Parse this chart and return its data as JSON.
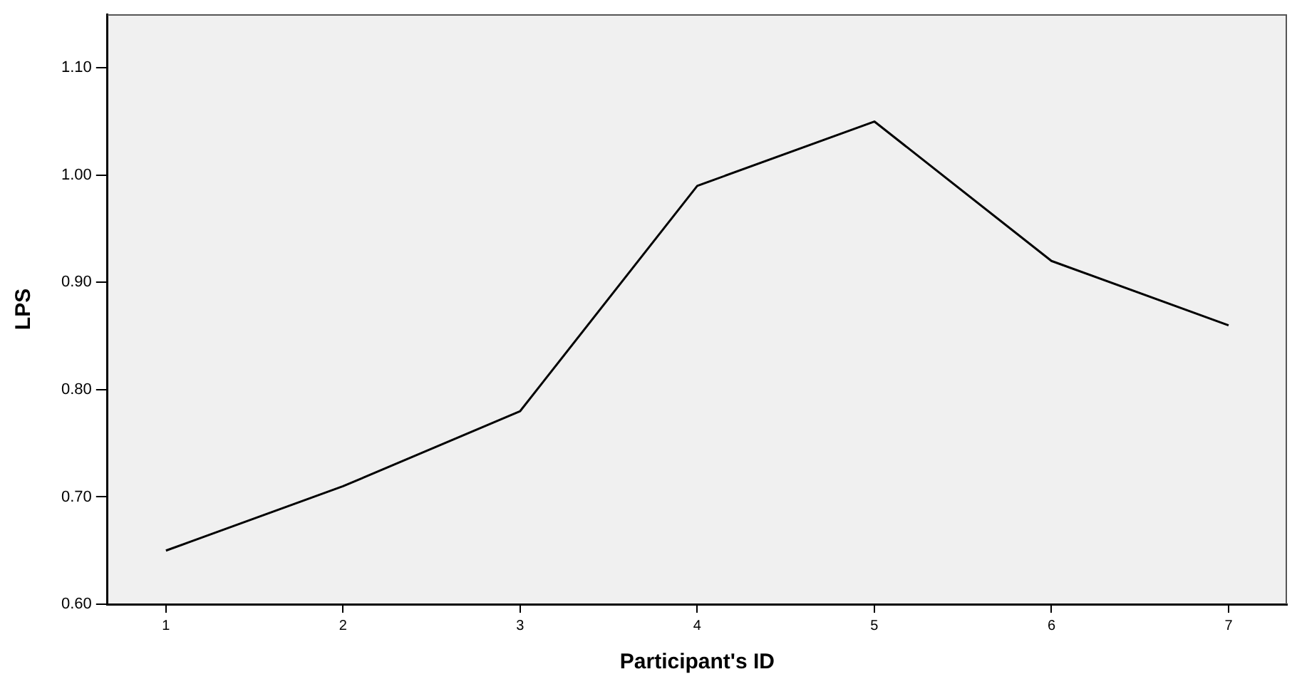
{
  "chart_data": {
    "type": "line",
    "xlabel": "Participant's ID",
    "ylabel": "LPS",
    "x": [
      1,
      2,
      3,
      4,
      5,
      6,
      7
    ],
    "series": [
      {
        "color": "#000000",
        "values": [
          0.65,
          0.71,
          0.78,
          0.99,
          1.05,
          0.92,
          0.86
        ]
      }
    ],
    "xlim": [
      0.67,
      7.33
    ],
    "xticks": [
      1,
      2,
      3,
      4,
      5,
      6,
      7
    ],
    "ylim": [
      0.6,
      1.15
    ],
    "yticks": [
      {
        "value": 0.6,
        "label": "0.60"
      },
      {
        "value": 0.7,
        "label": "0.70"
      },
      {
        "value": 0.8,
        "label": "0.80"
      },
      {
        "value": 0.9,
        "label": "0.90"
      },
      {
        "value": 1.0,
        "label": "1.00"
      },
      {
        "value": 1.1,
        "label": "1.10"
      }
    ],
    "grid": false,
    "legend": false,
    "marker": "none",
    "line_style": "solid"
  }
}
